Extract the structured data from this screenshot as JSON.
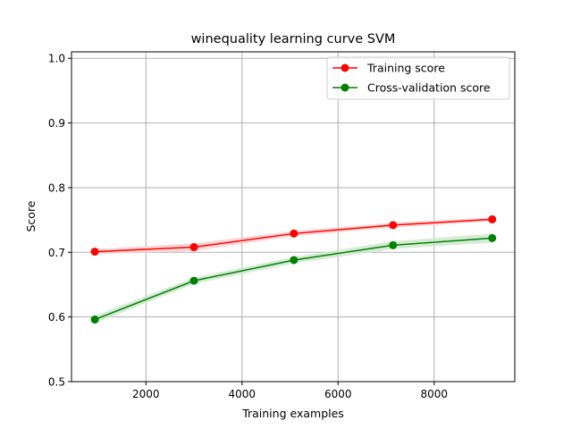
{
  "chart_data": {
    "type": "line",
    "title": "winequality learning curve SVM",
    "xlabel": "Training examples",
    "ylabel": "Score",
    "xlim": [
      450,
      9680
    ],
    "ylim": [
      0.5,
      1.01
    ],
    "x_ticks": [
      2000,
      4000,
      6000,
      8000
    ],
    "y_ticks": [
      0.5,
      0.6,
      0.7,
      0.8,
      0.9,
      1.0
    ],
    "x_tick_labels": [
      "2000",
      "4000",
      "6000",
      "8000"
    ],
    "y_tick_labels": [
      "0.5",
      "0.6",
      "0.7",
      "0.8",
      "0.9",
      "1.0"
    ],
    "grid": true,
    "legend": "top-right",
    "x": [
      935,
      3000,
      5080,
      7145,
      9210
    ],
    "series": [
      {
        "name": "Training score",
        "color": "#ff0000",
        "band_color": "#ffcccc",
        "values": [
          0.701,
          0.708,
          0.729,
          0.742,
          0.751
        ],
        "std": [
          0.004,
          0.006,
          0.004,
          0.004,
          0.003
        ]
      },
      {
        "name": "Cross-validation score",
        "color": "#008000",
        "band_color": "#cce6cc",
        "values": [
          0.596,
          0.656,
          0.688,
          0.711,
          0.722
        ],
        "std": [
          0.006,
          0.005,
          0.005,
          0.006,
          0.007
        ]
      }
    ]
  }
}
